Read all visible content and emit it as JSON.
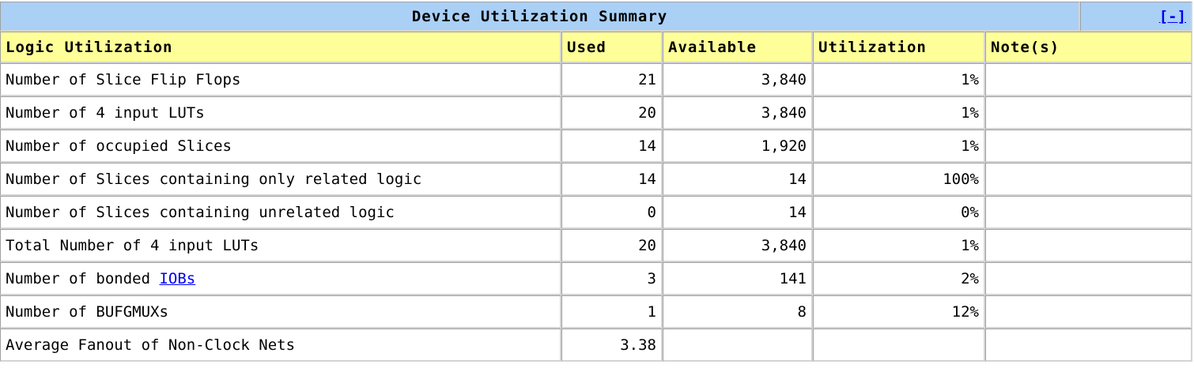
{
  "title": "Device Utilization Summary",
  "toggle_label": "[-]",
  "headers": {
    "logic": "Logic Utilization",
    "used": "Used",
    "available": "Available",
    "utilization": "Utilization",
    "notes": "Note(s)"
  },
  "rows": [
    {
      "label": "Number of Slice Flip Flops",
      "used": "21",
      "available": "3,840",
      "utilization": "1%",
      "note": ""
    },
    {
      "label": "Number of 4 input LUTs",
      "used": "20",
      "available": "3,840",
      "utilization": "1%",
      "note": ""
    },
    {
      "label": "Number of occupied Slices",
      "used": "14",
      "available": "1,920",
      "utilization": "1%",
      "note": ""
    },
    {
      "label": "Number of Slices containing only related logic",
      "used": "14",
      "available": "14",
      "utilization": "100%",
      "note": ""
    },
    {
      "label": "Number of Slices containing unrelated logic",
      "used": "0",
      "available": "14",
      "utilization": "0%",
      "note": ""
    },
    {
      "label": "Total Number of 4 input LUTs",
      "used": "20",
      "available": "3,840",
      "utilization": "1%",
      "note": ""
    },
    {
      "label_prefix": "Number of bonded ",
      "label_link": "IOBs",
      "used": "3",
      "available": "141",
      "utilization": "2%",
      "note": ""
    },
    {
      "label": "Number of BUFGMUXs",
      "used": "1",
      "available": "8",
      "utilization": "12%",
      "note": ""
    },
    {
      "label": "Average Fanout of Non-Clock Nets",
      "used": "3.38",
      "available": "",
      "utilization": "",
      "note": ""
    }
  ]
}
